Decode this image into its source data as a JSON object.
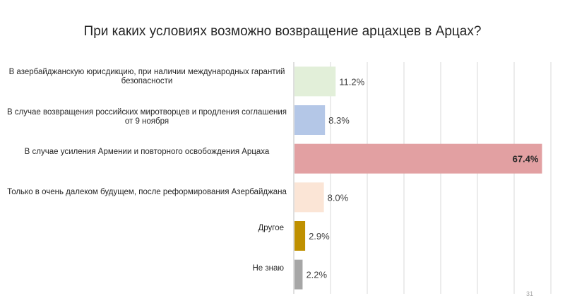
{
  "chart_data": {
    "type": "bar",
    "orientation": "horizontal",
    "title": "При каких условиях возможно возвращение арцахцев в Арцах?",
    "categories": [
      "В азербайджанскую юрисдикцию, при наличии международных гарантий безопасности",
      "В случае возвращения российских миротворцев и продления соглашения от 9 ноября",
      "В случае усиления Армении и повторного освобождения Арцаха",
      "Только в очень далеком будущем, после реформирования Азербайджана",
      "Другое",
      "Не знаю"
    ],
    "values": [
      11.2,
      8.3,
      67.4,
      8.0,
      2.9,
      2.2
    ],
    "value_labels": [
      "11.2%",
      "8.3%",
      "67.4%",
      "8.0%",
      "2.9%",
      "2.2%"
    ],
    "colors": [
      "#e2efd9",
      "#b4c7e7",
      "#e2a0a2",
      "#fbe5d6",
      "#bf9000",
      "#a6a6a6"
    ],
    "xlim": [
      0,
      70
    ],
    "grid": true,
    "legend": "none"
  },
  "page_number": "31"
}
